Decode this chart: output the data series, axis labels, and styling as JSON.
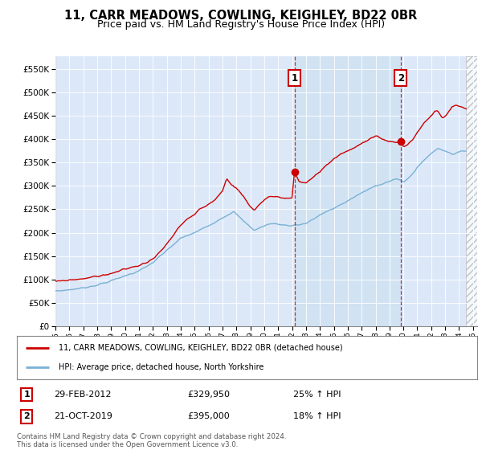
{
  "title": "11, CARR MEADOWS, COWLING, KEIGHLEY, BD22 0BR",
  "subtitle": "Price paid vs. HM Land Registry's House Price Index (HPI)",
  "title_fontsize": 10.5,
  "subtitle_fontsize": 9,
  "plot_bg_color": "#dce8f8",
  "ylim": [
    0,
    577000
  ],
  "yticks": [
    0,
    50000,
    100000,
    150000,
    200000,
    250000,
    300000,
    350000,
    400000,
    450000,
    500000,
    550000
  ],
  "legend_label_red": "11, CARR MEADOWS, COWLING, KEIGHLEY, BD22 0BR (detached house)",
  "legend_label_blue": "HPI: Average price, detached house, North Yorkshire",
  "sale1_date": "29-FEB-2012",
  "sale1_price": "£329,950",
  "sale1_hpi": "25% ↑ HPI",
  "sale1_label": "1",
  "sale2_date": "21-OCT-2019",
  "sale2_price": "£395,000",
  "sale2_hpi": "18% ↑ HPI",
  "sale2_label": "2",
  "footer": "Contains HM Land Registry data © Crown copyright and database right 2024.\nThis data is licensed under the Open Government Licence v3.0.",
  "red_color": "#cc0000",
  "blue_color": "#7ab0d4",
  "vline_color": "#cc0000",
  "shade_color": "#c8dff0",
  "hatch_color": "#b0c4d8",
  "sale1_x": 2012.17,
  "sale1_y": 329950,
  "sale2_x": 2019.8,
  "sale2_y": 395000,
  "xmin": 1995.0,
  "xmax": 2025.3,
  "hatch_start": 2024.5
}
